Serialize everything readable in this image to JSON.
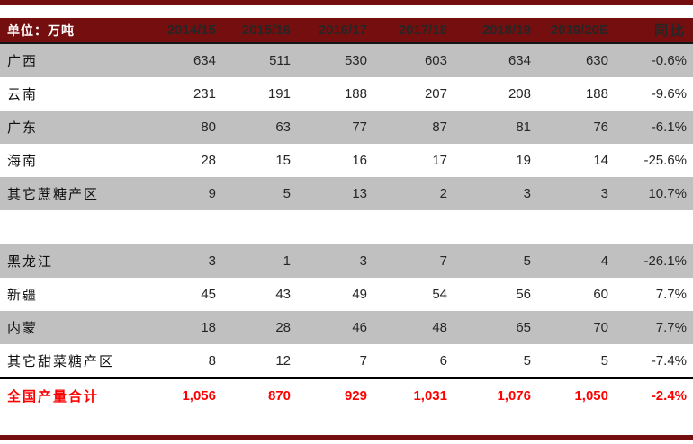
{
  "table": {
    "unit_label": "单位：万吨",
    "columns": [
      "2014/15",
      "2015/16",
      "2016/17",
      "2017/18",
      "2018/19",
      "2019/20E",
      "同比"
    ],
    "rows": [
      {
        "label": "广西",
        "values": [
          "634",
          "511",
          "530",
          "603",
          "634",
          "630",
          "-0.6%"
        ],
        "shade": true,
        "spacer": false
      },
      {
        "label": "云南",
        "values": [
          "231",
          "191",
          "188",
          "207",
          "208",
          "188",
          "-9.6%"
        ],
        "shade": false,
        "spacer": false
      },
      {
        "label": "广东",
        "values": [
          "80",
          "63",
          "77",
          "87",
          "81",
          "76",
          "-6.1%"
        ],
        "shade": true,
        "spacer": false
      },
      {
        "label": "海南",
        "values": [
          "28",
          "15",
          "16",
          "17",
          "19",
          "14",
          "-25.6%"
        ],
        "shade": false,
        "spacer": false
      },
      {
        "label": "其它蔗糖产区",
        "values": [
          "9",
          "5",
          "13",
          "2",
          "3",
          "3",
          "10.7%"
        ],
        "shade": true,
        "spacer": false
      },
      {
        "label": "",
        "values": [
          "",
          "",
          "",
          "",
          "",
          "",
          ""
        ],
        "shade": false,
        "spacer": true
      },
      {
        "label": "黑龙江",
        "values": [
          "3",
          "1",
          "3",
          "7",
          "5",
          "4",
          "-26.1%"
        ],
        "shade": true,
        "spacer": false
      },
      {
        "label": "新疆",
        "values": [
          "45",
          "43",
          "49",
          "54",
          "56",
          "60",
          "7.7%"
        ],
        "shade": false,
        "spacer": false
      },
      {
        "label": "内蒙",
        "values": [
          "18",
          "28",
          "46",
          "48",
          "65",
          "70",
          "7.7%"
        ],
        "shade": true,
        "spacer": false
      },
      {
        "label": "其它甜菜糖产区",
        "values": [
          "8",
          "12",
          "7",
          "6",
          "5",
          "5",
          "-7.4%"
        ],
        "shade": false,
        "spacer": false
      }
    ],
    "total_row": {
      "label": "全国产量合计",
      "values": [
        "1,056",
        "870",
        "929",
        "1,031",
        "1,076",
        "1,050",
        "-2.4%"
      ]
    }
  },
  "colors": {
    "maroon": "#750E0E",
    "row_gray": "#C0C0C0",
    "total_red": "#FE0000",
    "header_text": "#FFFFFF"
  }
}
